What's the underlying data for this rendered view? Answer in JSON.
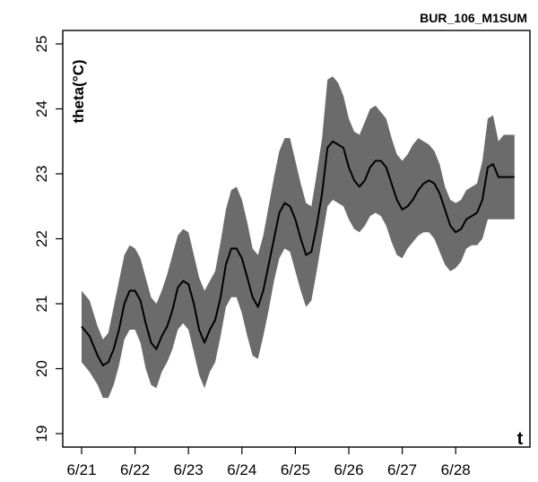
{
  "chart_data": {
    "type": "area",
    "title": "BUR_106_M1SUM",
    "xlabel": "t",
    "ylabel": "theta(°C)",
    "xlim": [
      0,
      8.3
    ],
    "ylim": [
      18.9,
      25.2
    ],
    "x_ticks": [
      0,
      1,
      2,
      3,
      4,
      5,
      6,
      7
    ],
    "x_tick_labels": [
      "6/21",
      "6/22",
      "6/23",
      "6/24",
      "6/25",
      "6/26",
      "6/27",
      "6/28"
    ],
    "y_ticks": [
      19,
      20,
      21,
      22,
      23,
      24,
      25
    ],
    "y_tick_labels": [
      "19",
      "20",
      "21",
      "22",
      "23",
      "24",
      "25"
    ],
    "grid": false,
    "colors": {
      "band": "#6b6b6b",
      "line": "#000000"
    },
    "series": [
      {
        "x": [
          0.0,
          0.15,
          0.3,
          0.4,
          0.5,
          0.6,
          0.7,
          0.8,
          0.9,
          1.0,
          1.1,
          1.2,
          1.3,
          1.4,
          1.5,
          1.6,
          1.7,
          1.8,
          1.9,
          2.0,
          2.1,
          2.2,
          2.3,
          2.4,
          2.5,
          2.6,
          2.7,
          2.8,
          2.9,
          3.0,
          3.1,
          3.2,
          3.3,
          3.4,
          3.5,
          3.6,
          3.7,
          3.8,
          3.9,
          4.0,
          4.1,
          4.2,
          4.3,
          4.4,
          4.5,
          4.6,
          4.7,
          4.8,
          4.9,
          5.0,
          5.1,
          5.2,
          5.3,
          5.4,
          5.5,
          5.6,
          5.7,
          5.8,
          5.9,
          6.0,
          6.1,
          6.2,
          6.3,
          6.4,
          6.5,
          6.6,
          6.7,
          6.8,
          6.9,
          7.0,
          7.1,
          7.2,
          7.3,
          7.4,
          7.5,
          7.6,
          7.7,
          7.8,
          7.9,
          8.0,
          8.1
        ],
        "mean": [
          20.65,
          20.5,
          20.2,
          20.05,
          20.1,
          20.3,
          20.6,
          21.0,
          21.2,
          21.2,
          21.05,
          20.7,
          20.4,
          20.3,
          20.5,
          20.65,
          20.9,
          21.25,
          21.35,
          21.3,
          21.0,
          20.6,
          20.4,
          20.6,
          20.75,
          21.1,
          21.6,
          21.85,
          21.85,
          21.7,
          21.4,
          21.1,
          20.95,
          21.2,
          21.6,
          22.0,
          22.4,
          22.55,
          22.5,
          22.3,
          22.0,
          21.75,
          21.8,
          22.2,
          22.7,
          23.4,
          23.5,
          23.45,
          23.4,
          23.1,
          22.9,
          22.8,
          22.9,
          23.1,
          23.2,
          23.2,
          23.1,
          22.85,
          22.6,
          22.45,
          22.5,
          22.6,
          22.75,
          22.85,
          22.9,
          22.85,
          22.7,
          22.45,
          22.2,
          22.1,
          22.15,
          22.3,
          22.35,
          22.4,
          22.6,
          23.1,
          23.15,
          22.95,
          22.95,
          22.95,
          22.95
        ],
        "lower": [
          20.1,
          19.95,
          19.75,
          19.55,
          19.55,
          19.75,
          20.05,
          20.45,
          20.6,
          20.6,
          20.4,
          20.0,
          19.75,
          19.7,
          19.95,
          20.1,
          20.3,
          20.6,
          20.7,
          20.6,
          20.25,
          19.9,
          19.7,
          19.95,
          20.1,
          20.5,
          20.95,
          21.1,
          21.1,
          20.85,
          20.5,
          20.2,
          20.15,
          20.5,
          20.9,
          21.35,
          21.7,
          21.85,
          21.8,
          21.5,
          21.2,
          20.95,
          21.05,
          21.5,
          22.0,
          22.5,
          22.6,
          22.55,
          22.5,
          22.3,
          22.15,
          22.1,
          22.2,
          22.35,
          22.4,
          22.35,
          22.2,
          21.95,
          21.75,
          21.7,
          21.85,
          21.95,
          22.05,
          22.1,
          22.1,
          22.0,
          21.8,
          21.6,
          21.5,
          21.55,
          21.65,
          21.85,
          21.9,
          21.9,
          22.0,
          22.3,
          22.3,
          22.3,
          22.3,
          22.3,
          22.3
        ],
        "upper": [
          21.2,
          21.05,
          20.65,
          20.45,
          20.55,
          20.95,
          21.35,
          21.75,
          21.9,
          21.85,
          21.7,
          21.4,
          21.1,
          21.0,
          21.2,
          21.45,
          21.75,
          22.05,
          22.15,
          22.1,
          21.75,
          21.4,
          21.2,
          21.35,
          21.5,
          21.95,
          22.45,
          22.75,
          22.8,
          22.6,
          22.25,
          21.85,
          21.75,
          22.05,
          22.5,
          22.95,
          23.35,
          23.55,
          23.55,
          23.2,
          22.85,
          22.55,
          22.5,
          23.0,
          23.55,
          24.45,
          24.5,
          24.4,
          24.2,
          23.85,
          23.65,
          23.6,
          23.8,
          24.0,
          24.05,
          23.95,
          23.85,
          23.55,
          23.3,
          23.2,
          23.3,
          23.45,
          23.55,
          23.5,
          23.45,
          23.35,
          23.15,
          22.8,
          22.6,
          22.55,
          22.6,
          22.75,
          22.8,
          22.85,
          23.2,
          23.85,
          23.9,
          23.5,
          23.6,
          23.6,
          23.6
        ]
      }
    ]
  }
}
